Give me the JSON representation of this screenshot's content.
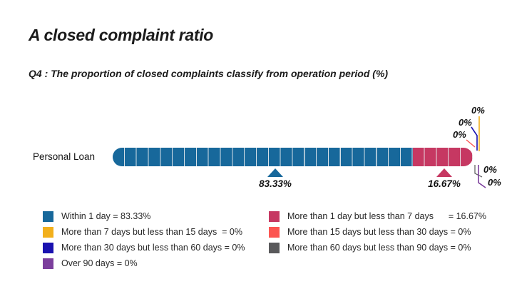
{
  "chart_data": {
    "type": "bar",
    "orientation": "horizontal-stacked",
    "title": "A closed complaint ratio",
    "subtitle": "Q4 : The proportion of closed complaints classify from operation period (%)",
    "categories": [
      "Personal Loan"
    ],
    "xlim": [
      0,
      100
    ],
    "series": [
      {
        "name": "Within 1 day",
        "value": 83.33,
        "color": "#17689B"
      },
      {
        "name": "More than 1 day but less than 7 days",
        "value": 16.67,
        "color": "#C63862"
      },
      {
        "name": "More than 7 days but less than 15 days",
        "value": 0,
        "color": "#F2B01C"
      },
      {
        "name": "More than 15 days but less than 30 days",
        "value": 0,
        "color": "#FC5551"
      },
      {
        "name": "More than 30 days but less than 60 days",
        "value": 0,
        "color": "#1A12B0"
      },
      {
        "name": "More than 60 days but less than 90 days",
        "value": 0,
        "color": "#59595B"
      },
      {
        "name": "Over 90 days",
        "value": 0,
        "color": "#7C3F9D"
      }
    ],
    "legend_position": "bottom",
    "grid": false
  },
  "colors": {
    "blue": "#17689B",
    "crimson": "#C63862",
    "yellow": "#F2B01C",
    "salmon": "#FC5551",
    "navy": "#1A12B0",
    "gray": "#59595B",
    "purple": "#7C3F9D"
  },
  "annotations": {
    "blue_marker_value": "83.33%",
    "pink_marker_value": "16.67%",
    "zero_label": "0%"
  },
  "legend": {
    "left": [
      {
        "text": "Within 1 day = 83.33%",
        "color": "#17689B"
      },
      {
        "text": "More than 7 days but less than 15 days  = 0%",
        "color": "#F2B01C"
      },
      {
        "text": "More than 30 days but less than 60 days = 0%",
        "color": "#1A12B0"
      },
      {
        "text": "Over 90 days = 0%",
        "color": "#7C3F9D"
      }
    ],
    "right": [
      {
        "text": "More than 1 day but less than 7 days      = 16.67%",
        "color": "#C63862"
      },
      {
        "text": "More than 15 days but less than 30 days = 0%",
        "color": "#FC5551"
      },
      {
        "text": "More than 60 days but less than 90 days = 0%",
        "color": "#59595B"
      }
    ]
  }
}
